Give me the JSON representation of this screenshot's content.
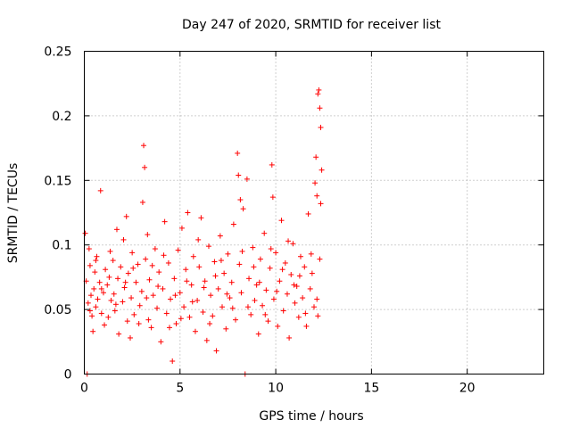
{
  "chart_data": {
    "type": "scatter",
    "title": "Day 247 of 2020, SRMTID for receiver list",
    "xlabel": "GPS time / hours",
    "ylabel": "SRMTID / TECUs",
    "xlim": [
      0,
      24
    ],
    "ylim": [
      0,
      0.25
    ],
    "x_ticks": [
      0,
      5,
      10,
      15,
      20
    ],
    "x_tick_labels": [
      "0",
      "5",
      "10",
      "15",
      "20"
    ],
    "y_ticks": [
      0,
      0.05,
      0.1,
      0.15,
      0.2,
      0.25
    ],
    "y_tick_labels": [
      "0",
      "0.05",
      "0.1",
      "0.15",
      "0.2",
      "0.25"
    ],
    "grid": true,
    "marker": "plus",
    "color": "#ff0000",
    "series": [
      {
        "name": "SRMTID",
        "notes": "representative sample of dense point cloud between 0 and 12.4 h",
        "points": [
          [
            0.05,
            0.109
          ],
          [
            0.1,
            0.072
          ],
          [
            0.15,
            0.0
          ],
          [
            0.2,
            0.055
          ],
          [
            0.25,
            0.097
          ],
          [
            0.3,
            0.084
          ],
          [
            0.35,
            0.061
          ],
          [
            0.4,
            0.045
          ],
          [
            0.45,
            0.033
          ],
          [
            0.5,
            0.066
          ],
          [
            0.55,
            0.079
          ],
          [
            0.6,
            0.052
          ],
          [
            0.65,
            0.091
          ],
          [
            0.7,
            0.058
          ],
          [
            0.8,
            0.071
          ],
          [
            0.85,
            0.142
          ],
          [
            0.9,
            0.047
          ],
          [
            1.0,
            0.063
          ],
          [
            1.05,
            0.038
          ],
          [
            1.1,
            0.081
          ],
          [
            1.2,
            0.069
          ],
          [
            1.25,
            0.044
          ],
          [
            1.3,
            0.075
          ],
          [
            1.4,
            0.057
          ],
          [
            1.5,
            0.088
          ],
          [
            1.55,
            0.062
          ],
          [
            1.6,
            0.049
          ],
          [
            1.7,
            0.112
          ],
          [
            1.75,
            0.074
          ],
          [
            1.8,
            0.031
          ],
          [
            1.9,
            0.083
          ],
          [
            2.0,
            0.056
          ],
          [
            2.05,
            0.104
          ],
          [
            2.1,
            0.067
          ],
          [
            2.2,
            0.122
          ],
          [
            2.25,
            0.041
          ],
          [
            2.3,
            0.078
          ],
          [
            2.4,
            0.028
          ],
          [
            2.45,
            0.059
          ],
          [
            2.5,
            0.094
          ],
          [
            2.6,
            0.046
          ],
          [
            2.7,
            0.071
          ],
          [
            2.8,
            0.085
          ],
          [
            2.9,
            0.053
          ],
          [
            3.0,
            0.064
          ],
          [
            3.05,
            0.133
          ],
          [
            3.1,
            0.177
          ],
          [
            3.15,
            0.16
          ],
          [
            3.2,
            0.089
          ],
          [
            3.3,
            0.108
          ],
          [
            3.35,
            0.042
          ],
          [
            3.4,
            0.073
          ],
          [
            3.5,
            0.036
          ],
          [
            3.6,
            0.061
          ],
          [
            3.7,
            0.097
          ],
          [
            3.8,
            0.051
          ],
          [
            3.9,
            0.079
          ],
          [
            4.0,
            0.025
          ],
          [
            4.1,
            0.066
          ],
          [
            4.2,
            0.118
          ],
          [
            4.3,
            0.047
          ],
          [
            4.4,
            0.086
          ],
          [
            4.5,
            0.058
          ],
          [
            4.6,
            0.01
          ],
          [
            4.7,
            0.074
          ],
          [
            4.8,
            0.039
          ],
          [
            4.9,
            0.096
          ],
          [
            5.0,
            0.063
          ],
          [
            5.1,
            0.113
          ],
          [
            5.2,
            0.052
          ],
          [
            5.3,
            0.081
          ],
          [
            5.4,
            0.125
          ],
          [
            5.5,
            0.044
          ],
          [
            5.6,
            0.069
          ],
          [
            5.7,
            0.091
          ],
          [
            5.8,
            0.033
          ],
          [
            5.9,
            0.057
          ],
          [
            6.0,
            0.083
          ],
          [
            6.1,
            0.121
          ],
          [
            6.2,
            0.048
          ],
          [
            6.3,
            0.072
          ],
          [
            6.4,
            0.026
          ],
          [
            6.5,
            0.099
          ],
          [
            6.6,
            0.061
          ],
          [
            6.7,
            0.045
          ],
          [
            6.8,
            0.087
          ],
          [
            6.9,
            0.018
          ],
          [
            7.0,
            0.066
          ],
          [
            7.1,
            0.107
          ],
          [
            7.2,
            0.052
          ],
          [
            7.3,
            0.078
          ],
          [
            7.4,
            0.035
          ],
          [
            7.5,
            0.093
          ],
          [
            7.6,
            0.059
          ],
          [
            7.7,
            0.071
          ],
          [
            7.8,
            0.116
          ],
          [
            7.9,
            0.042
          ],
          [
            8.0,
            0.171
          ],
          [
            8.05,
            0.154
          ],
          [
            8.1,
            0.085
          ],
          [
            8.15,
            0.135
          ],
          [
            8.2,
            0.063
          ],
          [
            8.3,
            0.128
          ],
          [
            8.4,
            0.0
          ],
          [
            8.5,
            0.151
          ],
          [
            8.6,
            0.074
          ],
          [
            8.7,
            0.046
          ],
          [
            8.8,
            0.098
          ],
          [
            8.9,
            0.057
          ],
          [
            9.0,
            0.069
          ],
          [
            9.1,
            0.031
          ],
          [
            9.2,
            0.089
          ],
          [
            9.3,
            0.053
          ],
          [
            9.4,
            0.109
          ],
          [
            9.5,
            0.065
          ],
          [
            9.6,
            0.041
          ],
          [
            9.7,
            0.082
          ],
          [
            9.8,
            0.162
          ],
          [
            9.85,
            0.137
          ],
          [
            9.9,
            0.058
          ],
          [
            10.0,
            0.094
          ],
          [
            10.1,
            0.037
          ],
          [
            10.2,
            0.072
          ],
          [
            10.3,
            0.119
          ],
          [
            10.4,
            0.049
          ],
          [
            10.5,
            0.086
          ],
          [
            10.6,
            0.062
          ],
          [
            10.7,
            0.028
          ],
          [
            10.8,
            0.077
          ],
          [
            10.9,
            0.101
          ],
          [
            11.0,
            0.055
          ],
          [
            11.1,
            0.068
          ],
          [
            11.2,
            0.044
          ],
          [
            11.3,
            0.091
          ],
          [
            11.4,
            0.059
          ],
          [
            11.5,
            0.083
          ],
          [
            11.6,
            0.037
          ],
          [
            11.7,
            0.124
          ],
          [
            11.8,
            0.066
          ],
          [
            11.9,
            0.078
          ],
          [
            12.0,
            0.052
          ],
          [
            12.05,
            0.148
          ],
          [
            12.1,
            0.168
          ],
          [
            12.15,
            0.138
          ],
          [
            12.2,
            0.217
          ],
          [
            12.25,
            0.22
          ],
          [
            12.3,
            0.206
          ],
          [
            12.35,
            0.191
          ],
          [
            12.4,
            0.158
          ],
          [
            12.2,
            0.045
          ],
          [
            12.3,
            0.089
          ],
          [
            12.35,
            0.132
          ],
          [
            0.3,
            0.049
          ],
          [
            0.6,
            0.088
          ],
          [
            0.9,
            0.066
          ],
          [
            1.35,
            0.095
          ],
          [
            1.65,
            0.054
          ],
          [
            2.15,
            0.071
          ],
          [
            2.55,
            0.082
          ],
          [
            2.85,
            0.039
          ],
          [
            3.25,
            0.059
          ],
          [
            3.55,
            0.084
          ],
          [
            3.85,
            0.068
          ],
          [
            4.15,
            0.092
          ],
          [
            4.45,
            0.036
          ],
          [
            4.75,
            0.061
          ],
          [
            5.05,
            0.043
          ],
          [
            5.35,
            0.072
          ],
          [
            5.65,
            0.056
          ],
          [
            5.95,
            0.104
          ],
          [
            6.25,
            0.067
          ],
          [
            6.55,
            0.039
          ],
          [
            6.85,
            0.076
          ],
          [
            7.15,
            0.088
          ],
          [
            7.45,
            0.062
          ],
          [
            7.75,
            0.051
          ],
          [
            8.25,
            0.095
          ],
          [
            8.55,
            0.052
          ],
          [
            8.85,
            0.083
          ],
          [
            9.15,
            0.071
          ],
          [
            9.45,
            0.046
          ],
          [
            9.75,
            0.097
          ],
          [
            10.05,
            0.064
          ],
          [
            10.35,
            0.081
          ],
          [
            10.65,
            0.103
          ],
          [
            10.95,
            0.069
          ],
          [
            11.25,
            0.076
          ],
          [
            11.55,
            0.047
          ],
          [
            11.85,
            0.093
          ],
          [
            12.15,
            0.058
          ]
        ]
      }
    ]
  }
}
